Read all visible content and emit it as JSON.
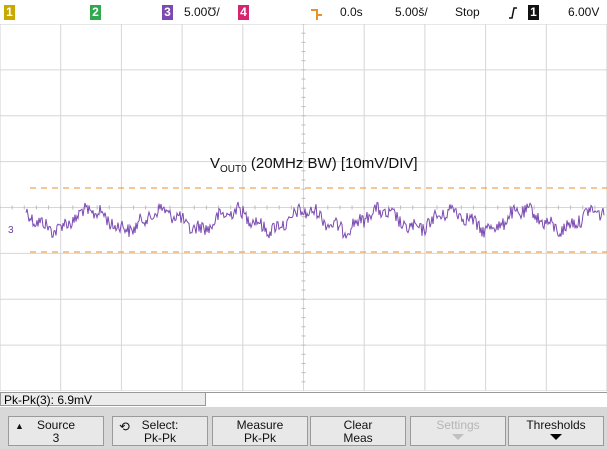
{
  "topbar": {
    "ch1": "1",
    "ch2": "2",
    "ch3": "3",
    "ch3_scale": "5.00Ʊ/",
    "ch4": "4",
    "delay": "0.0s",
    "timebase": "5.00š/",
    "run_state": "Stop",
    "trigger_icon": "trigger-edge-icon",
    "trigger_source": "1",
    "trigger_level": "6.00V",
    "colors": {
      "ch1": "#c9a800",
      "ch2": "#2fa84f",
      "ch3": "#7a4ab0",
      "ch4": "#d6246e",
      "trigger": "#e9912d"
    }
  },
  "screen": {
    "title_main": "V",
    "title_sub": "OUT0",
    "title_rest": " (20MHz BW) [10mV/DIV]",
    "ch3_marker": "3",
    "waveform_color": "#7a4ab0",
    "cursor_color": "#e9912d"
  },
  "measurement": {
    "text": "Pk-Pk(3): 6.9mV"
  },
  "softkeys": [
    {
      "l1": "Source",
      "l2": "3",
      "enabled": true
    },
    {
      "l1": "Select:",
      "l2": "Pk-Pk",
      "enabled": true
    },
    {
      "l1": "Measure",
      "l2": "Pk-Pk",
      "enabled": true
    },
    {
      "l1": "Clear",
      "l2": "Meas",
      "enabled": true
    },
    {
      "l1": "Settings",
      "l2": "",
      "enabled": false
    },
    {
      "l1": "Thresholds",
      "l2": "",
      "enabled": true
    }
  ]
}
